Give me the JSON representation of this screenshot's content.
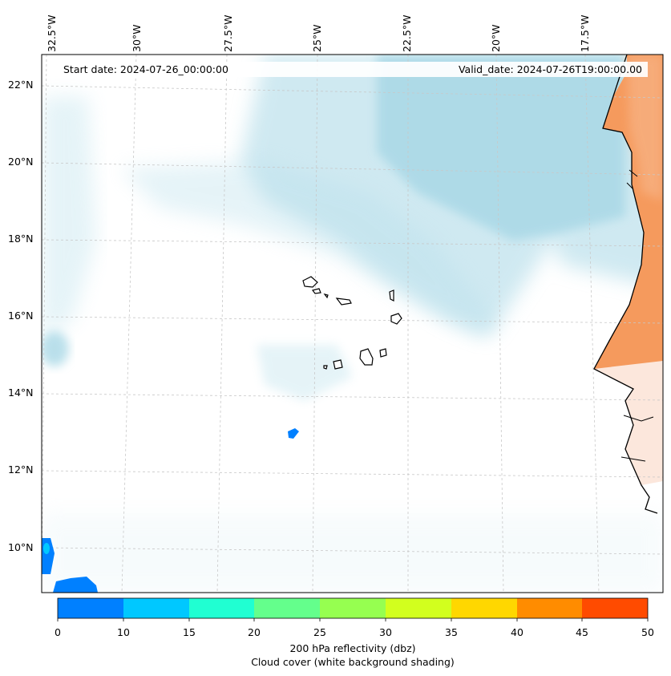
{
  "header": {
    "start_date": "Start date: 2024-07-26_00:00:00",
    "valid_date": "Valid_date: 2024-07-26T19:00:00.00"
  },
  "map": {
    "lon_labels": [
      "32.5°W",
      "30°W",
      "27.5°W",
      "25°W",
      "22.5°W",
      "20°W",
      "17.5°W"
    ],
    "lat_labels": [
      "22°N",
      "20°N",
      "18°N",
      "16°N",
      "14°N",
      "12°N",
      "10°N"
    ],
    "colors": {
      "land_fill": "#f59a5d",
      "cloud": "#a9d8e6",
      "coast": "#000000"
    }
  },
  "colorbar": {
    "ticks": [
      "0",
      "10",
      "15",
      "20",
      "25",
      "30",
      "35",
      "40",
      "45",
      "50"
    ],
    "colors": [
      "#0080ff",
      "#00c8ff",
      "#20ffd2",
      "#64ff8c",
      "#96ff50",
      "#d2ff1e",
      "#ffd700",
      "#ff8c00",
      "#ff4b00"
    ],
    "label_line1": "200 hPa reflectivity (dbz)",
    "label_line2": "Cloud cover (white background shading)"
  }
}
